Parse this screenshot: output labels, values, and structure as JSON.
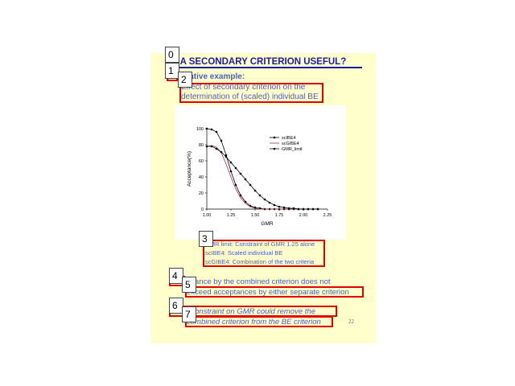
{
  "slide": {
    "title": "IS A SECONDARY CRITERION USEFUL?",
    "subtitle": "Illustrative example:",
    "intro_line1": "Effect of secondary criterion on the",
    "intro_line2": "determination of (scaled) individual BE",
    "legend_notes": [
      "GMR limit:  Constraint of GMR 1.25 alone",
      "scIBE4:  Scaled individual BE",
      "scGIBE4:  Combination of the two criteria"
    ],
    "point1_line1": "Acceptance by the combined criterion does not",
    "point1_line2": "exceed acceptances by either separate criterion",
    "point2_line1": "Strict constraint on GMR could remove the",
    "point2_line2": "combined criterion from the BE criterion",
    "page_number": "22"
  },
  "annotations": {
    "tags": [
      "0",
      "1",
      "2",
      "3",
      "4",
      "5",
      "6",
      "7"
    ]
  },
  "colors": {
    "title": "#1a1aa8",
    "text": "#4a5ccc",
    "slide_bg": "#ffffcc",
    "box": "#e00000"
  },
  "chart_data": {
    "type": "line",
    "xlabel": "GMR",
    "ylabel": "Acceptance(%)",
    "xlim": [
      1.0,
      2.25
    ],
    "ylim": [
      0,
      100
    ],
    "xticks": [
      "1.00",
      "1.25",
      "1.50",
      "1.75",
      "2.00",
      "2.25"
    ],
    "yticks": [
      "0",
      "20",
      "40",
      "60",
      "80",
      "100"
    ],
    "legend_position": "top-right",
    "x": [
      1.0,
      1.05,
      1.1,
      1.15,
      1.2,
      1.25,
      1.3,
      1.35,
      1.4,
      1.45,
      1.5,
      1.55,
      1.6,
      1.65,
      1.7,
      1.75,
      1.8,
      1.85,
      1.9,
      1.95,
      2.0,
      2.05,
      2.1,
      2.15
    ],
    "series": [
      {
        "name": "scIBE4",
        "marker": "dot",
        "color": "#000000",
        "values": [
          100,
          99,
          96,
          85,
          67,
          47,
          30,
          17,
          9,
          4,
          2,
          1,
          0,
          0,
          0,
          0,
          0,
          0,
          0,
          0,
          0,
          0,
          0,
          0
        ]
      },
      {
        "name": "scGIBE4",
        "marker": "none",
        "color": "#a0304a",
        "values": [
          78,
          79,
          77,
          70,
          56,
          40,
          25,
          14,
          7,
          3,
          1,
          0,
          0,
          0,
          0,
          0,
          0,
          0,
          0,
          0,
          0,
          0,
          0,
          0
        ]
      },
      {
        "name": "GMR_limit",
        "marker": "dot",
        "color": "#000000",
        "values": [
          78,
          78,
          75,
          71,
          65,
          58,
          51,
          44,
          37,
          30,
          23,
          17,
          12,
          8,
          5,
          3,
          2,
          1,
          1,
          0,
          0,
          0,
          0,
          0
        ]
      }
    ]
  }
}
